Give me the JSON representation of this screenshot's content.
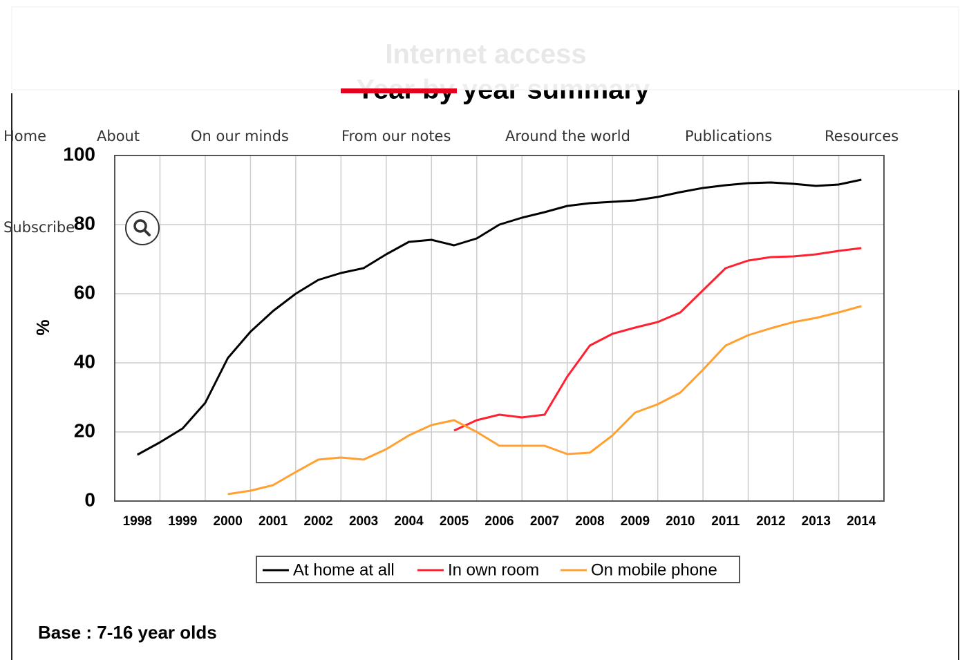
{
  "nav": {
    "items": [
      "Home",
      "About",
      "On our minds",
      "From our notes",
      "Around the world",
      "Publications",
      "Resources"
    ],
    "active": 3,
    "subscribe": "Subscribe"
  },
  "chart_data": {
    "type": "line",
    "title": "Internet access",
    "subtitle": "- Year by year summary",
    "y_label": "%",
    "note": "Base : 7-16 year olds",
    "x": [
      1998,
      1998.5,
      1999,
      1999.5,
      2000,
      2000.5,
      2001,
      2001.5,
      2002,
      2002.5,
      2003,
      2003.5,
      2004,
      2004.5,
      2005,
      2005.5,
      2006,
      2006.5,
      2007,
      2007.5,
      2008,
      2008.5,
      2009,
      2009.5,
      2010,
      2010.5,
      2011,
      2011.5,
      2012,
      2012.5,
      2013,
      2013.5,
      2014
    ],
    "series": [
      {
        "name": "At home at all",
        "color": "#000000",
        "values": [
          13.4,
          17,
          21,
          28.4,
          41.4,
          49,
          55,
          60,
          64,
          66,
          67.4,
          71.4,
          75,
          75.6,
          74,
          76,
          80,
          82,
          83.6,
          85.4,
          86.2,
          86.6,
          87,
          88,
          89.4,
          90.6,
          91.4,
          92,
          92.2,
          91.8,
          91.2,
          91.6,
          93
        ]
      },
      {
        "name": "In own room",
        "color": "#ff2030",
        "values": [
          null,
          null,
          null,
          null,
          null,
          null,
          null,
          null,
          null,
          null,
          null,
          null,
          null,
          null,
          20.4,
          23.4,
          25,
          24.2,
          25,
          36,
          45,
          48.4,
          50.2,
          51.8,
          54.6,
          61,
          67.4,
          69.6,
          70.6,
          70.8,
          71.4,
          72.4,
          73.2
        ]
      },
      {
        "name": "On mobile phone",
        "color": "#ffa030",
        "values": [
          null,
          null,
          null,
          null,
          2,
          3,
          4.6,
          8.4,
          12,
          12.6,
          12,
          15,
          19,
          22,
          23.4,
          20,
          16,
          16,
          16,
          13.6,
          14,
          19,
          25.6,
          28,
          31.4,
          38,
          45,
          48,
          50,
          51.8,
          53,
          54.6,
          56.4
        ]
      }
    ],
    "xlim": [
      1997.5,
      2014.5
    ],
    "xticks": [
      1998,
      1999,
      2000,
      2001,
      2002,
      2003,
      2004,
      2005,
      2006,
      2007,
      2008,
      2009,
      2010,
      2011,
      2012,
      2013,
      2014
    ],
    "ylim": [
      0,
      100
    ],
    "yticks": [
      0,
      20,
      40,
      60,
      80,
      100
    ],
    "grid": true
  }
}
